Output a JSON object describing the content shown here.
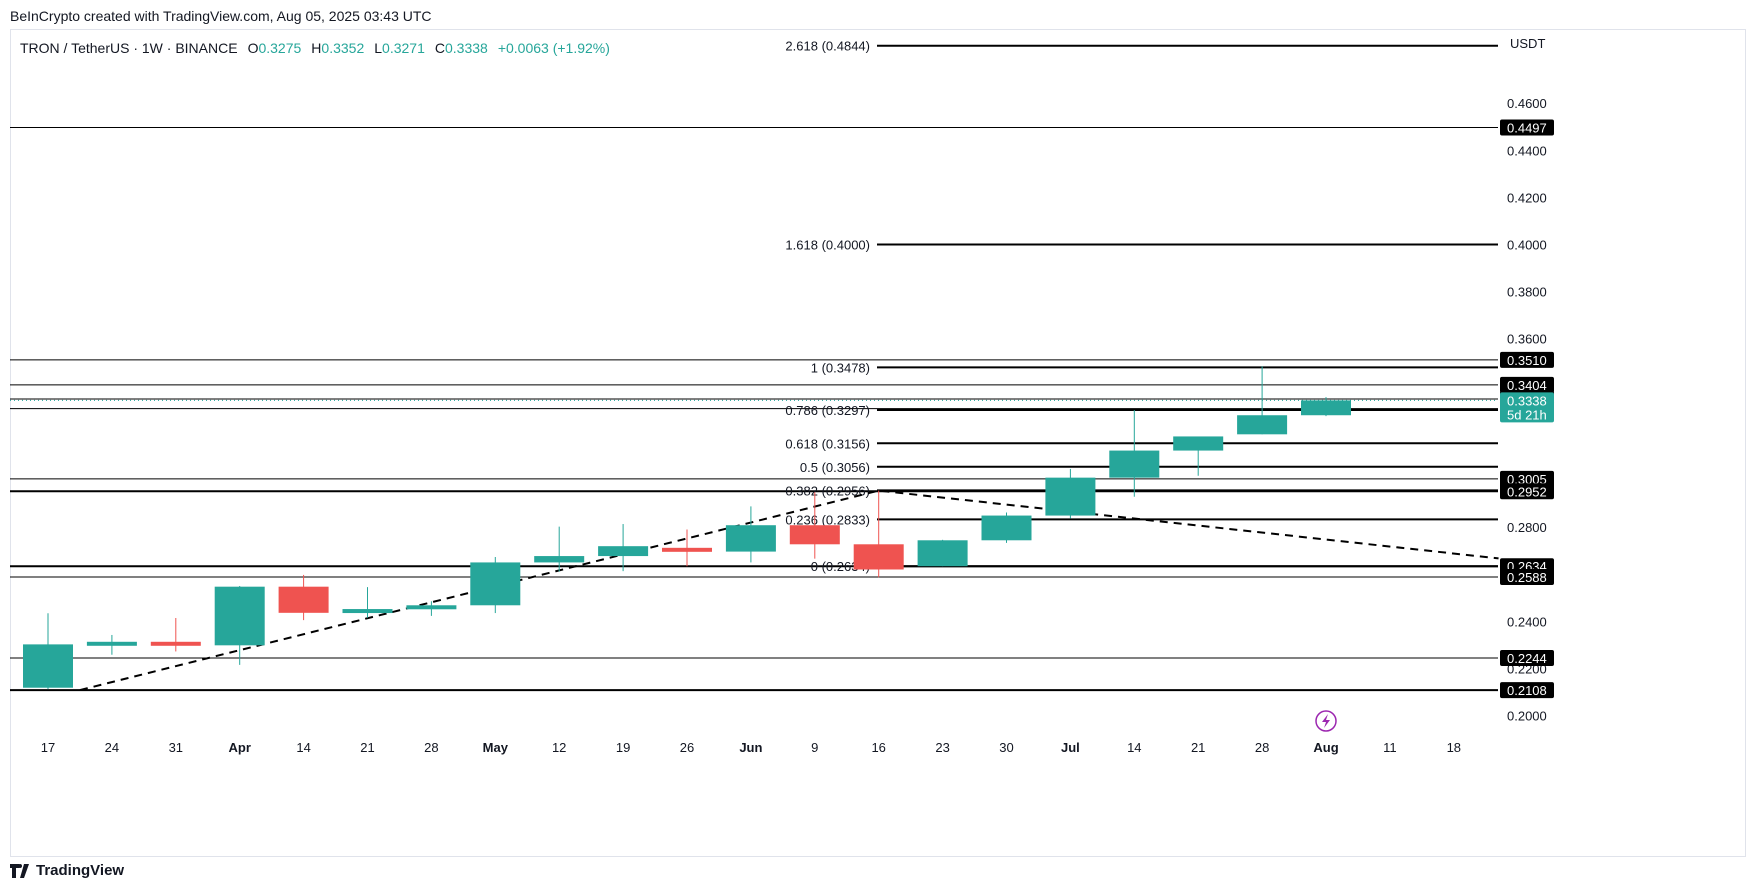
{
  "credit": "BeInCrypto created with TradingView.com, Aug 05, 2025 03:43 UTC",
  "legend": {
    "symbol": "TRON / TetherUS · 1W · BINANCE",
    "open_label": "O",
    "open": "0.3275",
    "high_label": "H",
    "high": "0.3352",
    "low_label": "L",
    "low": "0.3271",
    "close_label": "C",
    "close": "0.3338",
    "change": "+0.0063 (+1.92%)"
  },
  "currency": "USDT",
  "footer": {
    "brand": "TradingView"
  },
  "colors": {
    "up": "#26a69a",
    "down": "#ef5350",
    "line": "#000000",
    "axis_tag_bg": "#000000",
    "current_tag_bg": "#26a69a",
    "event_icon": "#9c27b0"
  },
  "chart_data": {
    "type": "candlestick",
    "title": "",
    "xlabel": "",
    "ylabel": "",
    "ylim": [
      0.19,
      0.488
    ],
    "grid": false,
    "y_ticks": [
      "0.2000",
      "0.2200",
      "0.2400",
      "0.2800",
      "0.3600",
      "0.3800",
      "0.4000",
      "0.4200",
      "0.4400",
      "0.4600"
    ],
    "x_ticks": [
      {
        "label": "17",
        "index": 0
      },
      {
        "label": "24",
        "index": 1
      },
      {
        "label": "31",
        "index": 2
      },
      {
        "label": "Apr",
        "index": 3,
        "bold": true
      },
      {
        "label": "14",
        "index": 4
      },
      {
        "label": "21",
        "index": 5
      },
      {
        "label": "28",
        "index": 6
      },
      {
        "label": "May",
        "index": 7,
        "bold": true
      },
      {
        "label": "12",
        "index": 8
      },
      {
        "label": "19",
        "index": 9
      },
      {
        "label": "26",
        "index": 10
      },
      {
        "label": "Jun",
        "index": 11,
        "bold": true
      },
      {
        "label": "9",
        "index": 12
      },
      {
        "label": "16",
        "index": 13
      },
      {
        "label": "23",
        "index": 14
      },
      {
        "label": "30",
        "index": 15
      },
      {
        "label": "Jul",
        "index": 16,
        "bold": true
      },
      {
        "label": "14",
        "index": 17
      },
      {
        "label": "21",
        "index": 18
      },
      {
        "label": "28",
        "index": 19
      },
      {
        "label": "Aug",
        "index": 20,
        "bold": true
      },
      {
        "label": "11",
        "index": 21
      },
      {
        "label": "18",
        "index": 22
      }
    ],
    "candles": [
      {
        "o": 0.2118,
        "h": 0.2434,
        "l": 0.2112,
        "c": 0.2302
      },
      {
        "o": 0.2302,
        "h": 0.2342,
        "l": 0.2258,
        "c": 0.2313
      },
      {
        "o": 0.2313,
        "h": 0.2414,
        "l": 0.2272,
        "c": 0.2298
      },
      {
        "o": 0.2298,
        "h": 0.255,
        "l": 0.2215,
        "c": 0.2547
      },
      {
        "o": 0.2547,
        "h": 0.2597,
        "l": 0.2405,
        "c": 0.2436
      },
      {
        "o": 0.2436,
        "h": 0.2545,
        "l": 0.2415,
        "c": 0.2452
      },
      {
        "o": 0.2452,
        "h": 0.2485,
        "l": 0.2423,
        "c": 0.2468
      },
      {
        "o": 0.2468,
        "h": 0.2673,
        "l": 0.2435,
        "c": 0.265
      },
      {
        "o": 0.265,
        "h": 0.2802,
        "l": 0.2611,
        "c": 0.2677
      },
      {
        "o": 0.2677,
        "h": 0.2813,
        "l": 0.2613,
        "c": 0.2719
      },
      {
        "o": 0.2712,
        "h": 0.279,
        "l": 0.2634,
        "c": 0.2696
      },
      {
        "o": 0.2696,
        "h": 0.2888,
        "l": 0.265,
        "c": 0.2808
      },
      {
        "o": 0.2808,
        "h": 0.2948,
        "l": 0.2666,
        "c": 0.2727
      },
      {
        "o": 0.2727,
        "h": 0.2955,
        "l": 0.2587,
        "c": 0.262
      },
      {
        "o": 0.2634,
        "h": 0.2746,
        "l": 0.2634,
        "c": 0.2744
      },
      {
        "o": 0.2744,
        "h": 0.2862,
        "l": 0.2733,
        "c": 0.2849
      },
      {
        "o": 0.2849,
        "h": 0.3047,
        "l": 0.2837,
        "c": 0.301
      },
      {
        "o": 0.301,
        "h": 0.3297,
        "l": 0.2929,
        "c": 0.3125
      },
      {
        "o": 0.3125,
        "h": 0.3169,
        "l": 0.3018,
        "c": 0.3185
      },
      {
        "o": 0.3194,
        "h": 0.3483,
        "l": 0.3194,
        "c": 0.3275
      },
      {
        "o": 0.3275,
        "h": 0.3352,
        "l": 0.3271,
        "c": 0.3338
      }
    ],
    "horizontal_lines": [
      {
        "value": 0.4497,
        "tag": "0.4497",
        "weight": 1
      },
      {
        "value": 0.351,
        "tag": "0.3510",
        "weight": 1
      },
      {
        "value": 0.3404,
        "tag": "0.3404",
        "weight": 1
      },
      {
        "value": 0.3344,
        "tag": "0.3344",
        "weight": 1
      },
      {
        "value": 0.3303,
        "tag": "0.3303",
        "weight": 1
      },
      {
        "value": 0.3005,
        "tag": "0.3005",
        "weight": 1
      },
      {
        "value": 0.2952,
        "tag": "0.2952",
        "weight": 2
      },
      {
        "value": 0.2634,
        "tag": "0.2634",
        "weight": 2
      },
      {
        "value": 0.2588,
        "tag": "0.2588",
        "weight": 1
      },
      {
        "value": 0.2244,
        "tag": "0.2244",
        "weight": 1
      },
      {
        "value": 0.2108,
        "tag": "0.2108",
        "weight": 2
      }
    ],
    "fib_levels": [
      {
        "label": "2.618 (0.4844)",
        "value": 0.4844
      },
      {
        "label": "1.618 (0.4000)",
        "value": 0.4
      },
      {
        "label": "1 (0.3478)",
        "value": 0.3478
      },
      {
        "label": "0.786 (0.3297)",
        "value": 0.3297
      },
      {
        "label": "0.618 (0.3156)",
        "value": 0.3156
      },
      {
        "label": "0.5 (0.3056)",
        "value": 0.3056
      },
      {
        "label": "0.382 (0.2956)",
        "value": 0.2956
      },
      {
        "label": "0.236 (0.2833)",
        "value": 0.2833
      },
      {
        "label": "0 (0.2634)",
        "value": 0.2634
      }
    ],
    "trendlines": [
      {
        "points": [
          [
            0.5,
            0.2108
          ],
          [
            13.0,
            0.2955
          ],
          [
            22.7,
            0.2667
          ]
        ]
      }
    ],
    "current_price": {
      "value": 0.3338,
      "tag": "0.3338",
      "countdown": "5d 21h"
    }
  }
}
